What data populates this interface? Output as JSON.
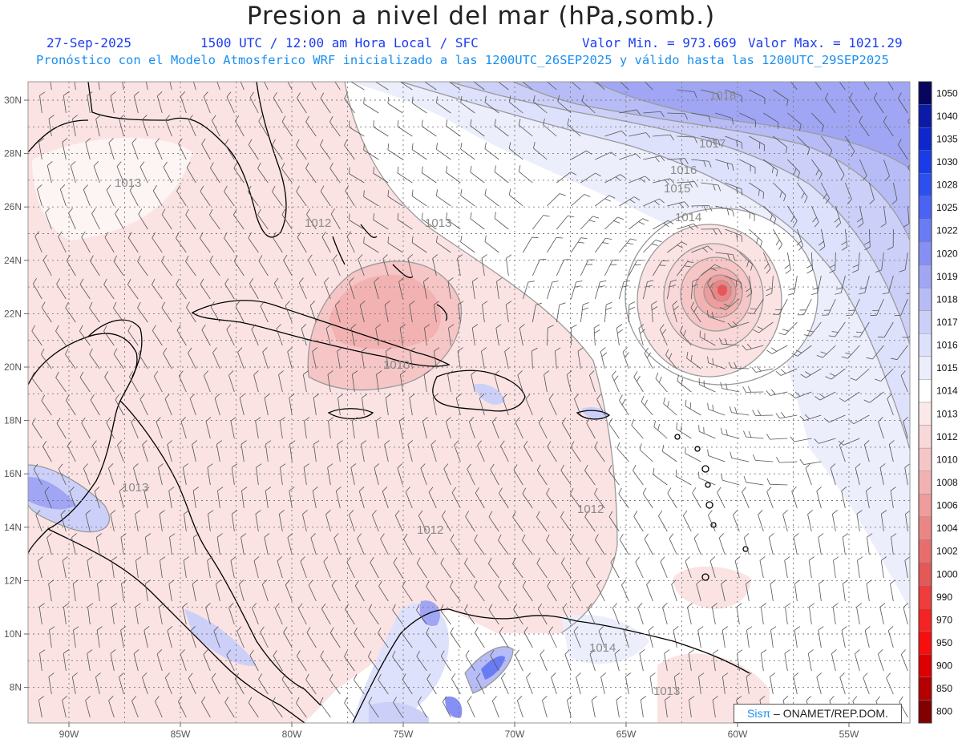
{
  "title": "Presion a nivel del mar (hPa,somb.)",
  "date": "27-Sep-2025",
  "time_info": "1500 UTC / 12:00 am Hora Local / SFC",
  "value_min": "Valor Min. = 973.669",
  "value_max": "Valor Max. = 1021.29",
  "subtitle": "Pronóstico con el Modelo Atmosferico WRF inicializado a las 1200UTC_26SEP2025 y válido hasta las  1200UTC_29SEP2025",
  "credit": {
    "brand": "Sisπ",
    "text": "– ONAMET/REP.DOM."
  },
  "axes": {
    "longitudes": [
      "90W",
      "85W",
      "80W",
      "75W",
      "70W",
      "65W",
      "60W",
      "55W"
    ],
    "latitudes": [
      "30N",
      "28N",
      "26N",
      "24N",
      "22N",
      "20N",
      "18N",
      "16N",
      "14N",
      "12N",
      "10N",
      "8N"
    ]
  },
  "colorbar": {
    "levels": [
      "1050",
      "1040",
      "1035",
      "1030",
      "1028",
      "1025",
      "1022",
      "1020",
      "1019",
      "1018",
      "1017",
      "1016",
      "1015",
      "1014",
      "1013",
      "1012",
      "1010",
      "1008",
      "1006",
      "1004",
      "1002",
      "1000",
      "990",
      "970",
      "950",
      "900",
      "850",
      "800"
    ],
    "colors": [
      "#06065e",
      "#0b1aa8",
      "#0e27cc",
      "#1a3ce8",
      "#2c50f0",
      "#4a63f4",
      "#6a7cf4",
      "#8690f4",
      "#a0a6f4",
      "#b7bcf6",
      "#ccd0f8",
      "#dee1fb",
      "#eceefc",
      "#ffffff",
      "#fbe9e9",
      "#f8d8d8",
      "#f6c6c6",
      "#f3b2b2",
      "#f09c9c",
      "#ec8686",
      "#e86e6e",
      "#e55858",
      "#ef3c3c",
      "#f52424",
      "#f70f0f",
      "#dc0000",
      "#b40000",
      "#820000"
    ]
  },
  "isobar_labels": [
    "1018",
    "1017",
    "1016",
    "1015",
    "1014",
    "1013",
    "1012",
    "1013",
    "1012",
    "1010",
    "1013",
    "1012",
    "1014",
    "1013"
  ],
  "storm_center": {
    "lon": -60.6,
    "lat": 22.9,
    "min_pressure_hpa": 973.669
  },
  "colors": {
    "header_blue": "#1c3cf0",
    "subtitle_blue": "#1a8ff0",
    "land_outline": "#000000",
    "barb": "#555555"
  }
}
